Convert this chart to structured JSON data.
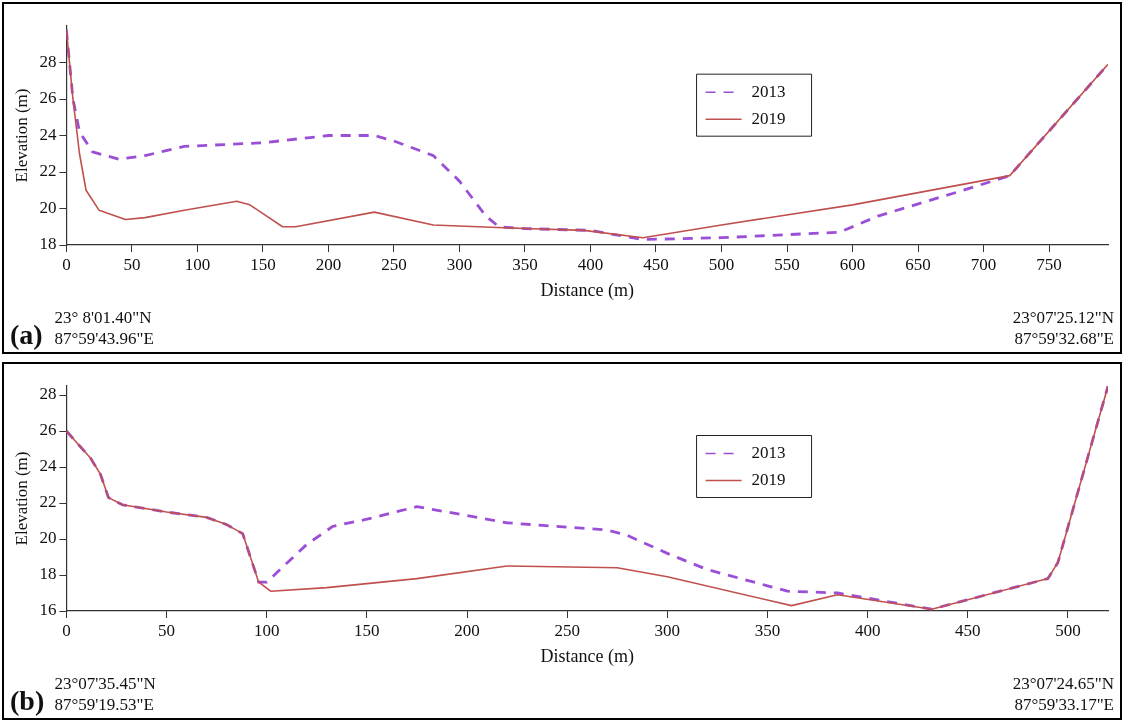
{
  "chart_data": [
    {
      "type": "line",
      "xlabel": "Distance (m)",
      "ylabel": "Elevation (m)",
      "xlim": [
        0,
        795
      ],
      "ylim": [
        18,
        30
      ],
      "xticks": [
        0,
        50,
        100,
        150,
        200,
        250,
        300,
        350,
        400,
        450,
        500,
        550,
        600,
        650,
        700,
        750
      ],
      "yticks": [
        18,
        20,
        22,
        24,
        26,
        28
      ],
      "grid": false,
      "legend": "top right",
      "marker": "none",
      "annotations": [
        "(a)",
        "23° 8'01.40\"N\n87°59'43.96\"E",
        "23°07'25.12\"N\n87°59'32.68\"E"
      ],
      "series": [
        {
          "name": "2013",
          "color": "#9b4fd6",
          "line_style": "dashed",
          "x": [
            0,
            5,
            10,
            20,
            40,
            60,
            90,
            150,
            200,
            235,
            250,
            280,
            300,
            320,
            330,
            350,
            400,
            440,
            500,
            590,
            620,
            680,
            720,
            795
          ],
          "values": [
            29.8,
            26,
            24.2,
            23.1,
            22.7,
            22.9,
            23.4,
            23.6,
            24,
            24,
            23.7,
            22.9,
            21.5,
            19.6,
            19,
            18.9,
            18.8,
            18.3,
            18.4,
            18.7,
            19.6,
            20.9,
            21.8,
            27.9
          ]
        },
        {
          "name": "2019",
          "color": "#c0504d",
          "line_style": "solid",
          "x": [
            0,
            5,
            10,
            15,
            25,
            45,
            60,
            90,
            130,
            140,
            165,
            175,
            235,
            280,
            350,
            395,
            440,
            500,
            600,
            720,
            795
          ],
          "values": [
            29.8,
            26,
            23,
            21,
            19.9,
            19.4,
            19.5,
            19.9,
            20.4,
            20.2,
            19,
            19,
            19.8,
            19.1,
            18.9,
            18.8,
            18.4,
            19.1,
            20.2,
            21.8,
            27.9
          ]
        }
      ]
    },
    {
      "type": "line",
      "xlabel": "Distance (m)",
      "ylabel": "Elevation (m)",
      "xlim": [
        0,
        520
      ],
      "ylim": [
        16,
        28.5
      ],
      "xticks": [
        0,
        50,
        100,
        150,
        200,
        250,
        300,
        350,
        400,
        450,
        500
      ],
      "yticks": [
        16,
        18,
        20,
        22,
        24,
        26,
        28
      ],
      "grid": false,
      "legend": "top right",
      "marker": "none",
      "annotations": [
        "(b)",
        "23°07'35.45\"N\n87°59'19.53\"E",
        "23°07'24.65\"N\n87°59'33.17\"E"
      ],
      "series": [
        {
          "name": "2013",
          "color": "#9b4fd6",
          "line_style": "dashed",
          "x": [
            0,
            12,
            17,
            21,
            28,
            50,
            70,
            80,
            88,
            96,
            100,
            120,
            133,
            150,
            175,
            220,
            270,
            280,
            300,
            320,
            350,
            360,
            385,
            432,
            490,
            495,
            520
          ],
          "values": [
            26,
            24.5,
            23.6,
            22.3,
            21.9,
            21.5,
            21.2,
            20.8,
            20.3,
            17.6,
            17.6,
            19.7,
            20.7,
            21.1,
            21.8,
            20.9,
            20.5,
            20.2,
            19.2,
            18.3,
            17.4,
            17.1,
            17,
            16.1,
            17.8,
            18.7,
            28.5
          ]
        },
        {
          "name": "2019",
          "color": "#c0504d",
          "line_style": "solid",
          "x": [
            0,
            12,
            17,
            21,
            28,
            50,
            70,
            80,
            88,
            96,
            102,
            130,
            175,
            220,
            275,
            300,
            362,
            385,
            432,
            490,
            495,
            520
          ],
          "values": [
            26,
            24.5,
            23.6,
            22.3,
            21.9,
            21.5,
            21.2,
            20.8,
            20.3,
            17.6,
            17.1,
            17.3,
            17.8,
            18.5,
            18.4,
            17.9,
            16.3,
            16.9,
            16.1,
            17.8,
            18.7,
            28.5
          ]
        }
      ]
    }
  ]
}
